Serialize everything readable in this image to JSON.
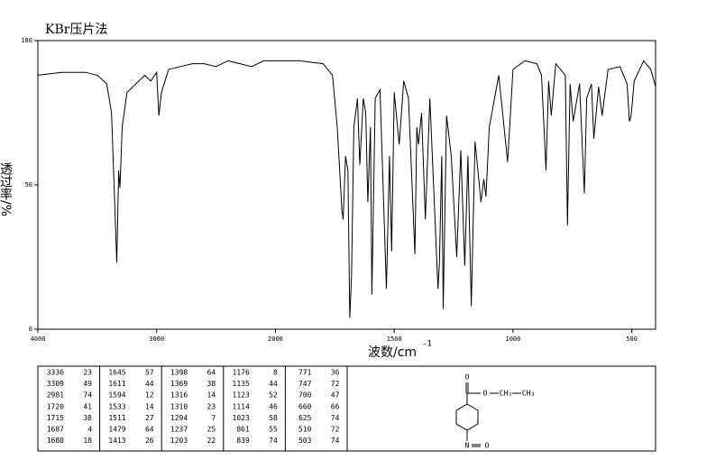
{
  "chart_data": {
    "type": "line",
    "title": "KBr压片法",
    "xlabel": "波数/cm",
    "xlabel_sup": "-1",
    "ylabel": "透过率/%",
    "xlim": [
      4000,
      400
    ],
    "xbreak": 2000,
    "xticks": [
      4000,
      3000,
      2000,
      1500,
      1000,
      500
    ],
    "ylim": [
      0,
      100
    ],
    "yticks": [
      0,
      50,
      100
    ],
    "color": "#000000",
    "x": [
      4000,
      3800,
      3600,
      3500,
      3420,
      3380,
      3350,
      3336,
      3320,
      3309,
      3290,
      3250,
      3150,
      3100,
      3050,
      3000,
      2981,
      2960,
      2930,
      2900,
      2800,
      2700,
      2600,
      2500,
      2400,
      2300,
      2200,
      2100,
      2000,
      1900,
      1800,
      1760,
      1740,
      1720,
      1715,
      1705,
      1695,
      1687,
      1680,
      1670,
      1655,
      1645,
      1630,
      1620,
      1611,
      1600,
      1594,
      1580,
      1560,
      1533,
      1520,
      1511,
      1500,
      1479,
      1460,
      1440,
      1413,
      1405,
      1398,
      1385,
      1369,
      1350,
      1316,
      1310,
      1300,
      1294,
      1280,
      1260,
      1237,
      1220,
      1203,
      1190,
      1176,
      1160,
      1135,
      1123,
      1114,
      1100,
      1060,
      1023,
      1000,
      950,
      900,
      880,
      861,
      850,
      839,
      820,
      780,
      771,
      760,
      747,
      720,
      700,
      690,
      670,
      660,
      640,
      625,
      600,
      550,
      520,
      510,
      503,
      490,
      450,
      420,
      400
    ],
    "values": [
      88,
      89,
      89,
      88,
      85,
      75,
      40,
      23,
      55,
      49,
      70,
      82,
      86,
      88,
      86,
      89,
      74,
      82,
      86,
      90,
      91,
      92,
      92,
      91,
      93,
      92,
      91,
      93,
      93,
      93,
      92,
      88,
      70,
      41,
      38,
      60,
      55,
      4,
      18,
      70,
      80,
      57,
      80,
      75,
      44,
      70,
      12,
      80,
      83,
      14,
      60,
      27,
      82,
      64,
      86,
      80,
      26,
      70,
      64,
      75,
      38,
      80,
      14,
      23,
      60,
      7,
      74,
      60,
      25,
      62,
      22,
      60,
      8,
      65,
      44,
      52,
      46,
      70,
      88,
      58,
      90,
      93,
      92,
      88,
      55,
      86,
      74,
      92,
      88,
      36,
      85,
      72,
      85,
      47,
      80,
      85,
      66,
      84,
      74,
      90,
      91,
      85,
      72,
      74,
      86,
      93,
      90,
      84
    ]
  },
  "peak_table": [
    [
      3336,
      23
    ],
    [
      3309,
      49
    ],
    [
      2981,
      74
    ],
    [
      1720,
      41
    ],
    [
      1715,
      38
    ],
    [
      1687,
      4
    ],
    [
      1680,
      18
    ],
    [
      1645,
      57
    ],
    [
      1611,
      44
    ],
    [
      1594,
      12
    ],
    [
      1533,
      14
    ],
    [
      1511,
      27
    ],
    [
      1479,
      64
    ],
    [
      1413,
      26
    ],
    [
      1398,
      64
    ],
    [
      1369,
      38
    ],
    [
      1316,
      14
    ],
    [
      1310,
      23
    ],
    [
      1294,
      7
    ],
    [
      1237,
      25
    ],
    [
      1203,
      22
    ],
    [
      1176,
      8
    ],
    [
      1135,
      44
    ],
    [
      1123,
      52
    ],
    [
      1114,
      46
    ],
    [
      1023,
      58
    ],
    [
      861,
      55
    ],
    [
      839,
      74
    ],
    [
      771,
      36
    ],
    [
      747,
      72
    ],
    [
      700,
      47
    ],
    [
      660,
      66
    ],
    [
      625,
      74
    ],
    [
      510,
      72
    ],
    [
      503,
      74
    ]
  ],
  "structure": {
    "labels": [
      "O",
      "O",
      "CH₂",
      "CH₃",
      "N",
      "O"
    ]
  }
}
